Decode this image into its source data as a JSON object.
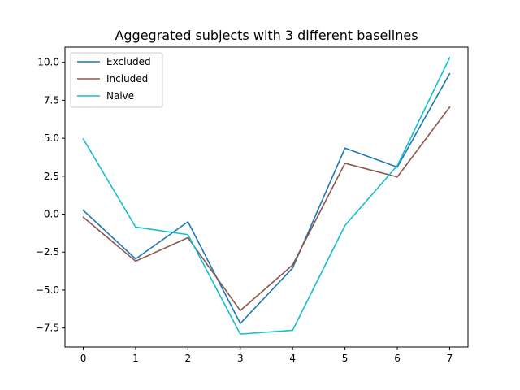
{
  "chart_data": {
    "type": "line",
    "title": "Aggegrated subjects with 3 different baselines",
    "xlabel": "",
    "ylabel": "",
    "x": [
      0,
      1,
      2,
      3,
      4,
      5,
      6,
      7
    ],
    "xlim": [
      -0.35,
      7.35
    ],
    "ylim": [
      -8.75,
      11.0
    ],
    "xticks": [
      0,
      1,
      2,
      3,
      4,
      5,
      6,
      7
    ],
    "yticks": [
      -7.5,
      -5.0,
      -2.5,
      0.0,
      2.5,
      5.0,
      7.5,
      10.0
    ],
    "ytick_labels": [
      "−7.5",
      "−5.0",
      "−2.5",
      "0.0",
      "2.5",
      "5.0",
      "7.5",
      "10.0"
    ],
    "grid": false,
    "legend_position": "top-left",
    "series": [
      {
        "name": "Excluded",
        "color": "#1f77b4",
        "values": [
          0.25,
          -2.95,
          -0.5,
          -7.2,
          -3.55,
          4.35,
          3.1,
          9.25
        ]
      },
      {
        "name": "Included",
        "color": "#8c564b",
        "values": [
          -0.2,
          -3.1,
          -1.55,
          -6.35,
          -3.35,
          3.35,
          2.45,
          7.05
        ]
      },
      {
        "name": "Naive",
        "color": "#17becf",
        "values": [
          4.95,
          -0.85,
          -1.35,
          -7.9,
          -7.65,
          -0.75,
          3.2,
          10.3
        ]
      }
    ]
  }
}
